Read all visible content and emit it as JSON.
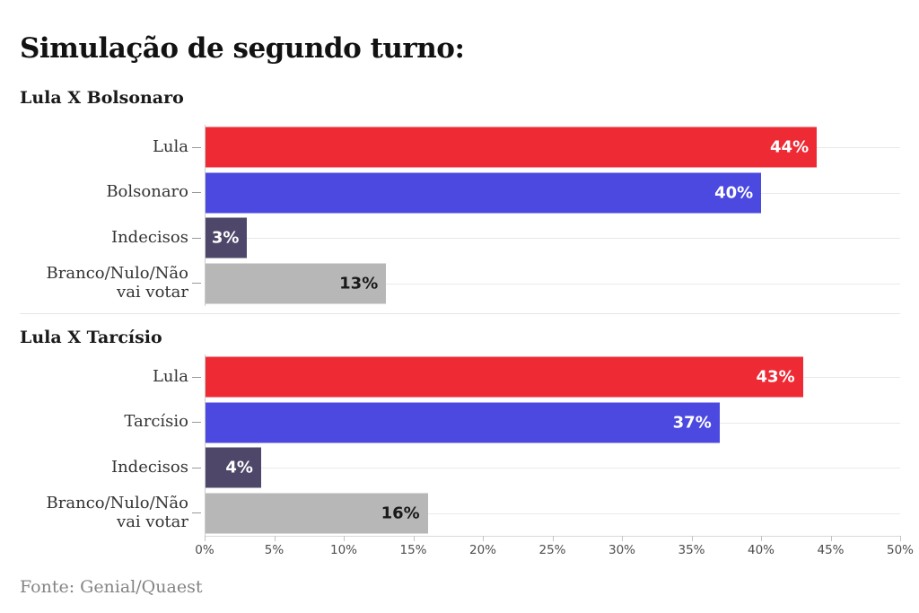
{
  "page": {
    "title": "Simulação de segundo turno:",
    "source": "Fonte: Genial/Quaest"
  },
  "colors": {
    "red": "#ee2a35",
    "blue": "#4b49e0",
    "purple": "#4e4769",
    "gray": "#b7b7b7",
    "row_line": "#e9e9e9",
    "axis_line": "#d9d9d9"
  },
  "axis": {
    "min": 0,
    "max": 50,
    "tick_step": 5,
    "tick_labels": [
      "0%",
      "5%",
      "10%",
      "15%",
      "20%",
      "25%",
      "30%",
      "35%",
      "40%",
      "45%",
      "50%"
    ]
  },
  "chart_data": [
    {
      "type": "bar",
      "orientation": "horizontal",
      "title": "Lula X Bolsonaro",
      "categories": [
        "Lula",
        "Bolsonaro",
        "Indecisos",
        "Branco/Nulo/Não vai votar"
      ],
      "values": [
        44,
        40,
        3,
        13
      ],
      "value_labels": [
        "44%",
        "40%",
        "3%",
        "13%"
      ],
      "bar_colors": [
        "red",
        "blue",
        "purple",
        "gray"
      ],
      "value_label_colors": [
        "#ffffff",
        "#ffffff",
        "#ffffff",
        "#1a1a1a"
      ],
      "xlim": [
        0,
        50
      ],
      "grid": "row-lines",
      "legend": "none"
    },
    {
      "type": "bar",
      "orientation": "horizontal",
      "title": "Lula X Tarcísio",
      "categories": [
        "Lula",
        "Tarcísio",
        "Indecisos",
        "Branco/Nulo/Não vai votar"
      ],
      "values": [
        43,
        37,
        4,
        16
      ],
      "value_labels": [
        "43%",
        "37%",
        "4%",
        "16%"
      ],
      "bar_colors": [
        "red",
        "blue",
        "purple",
        "gray"
      ],
      "value_label_colors": [
        "#ffffff",
        "#ffffff",
        "#ffffff",
        "#1a1a1a"
      ],
      "xlim": [
        0,
        50
      ],
      "grid": "row-lines",
      "legend": "none"
    }
  ]
}
